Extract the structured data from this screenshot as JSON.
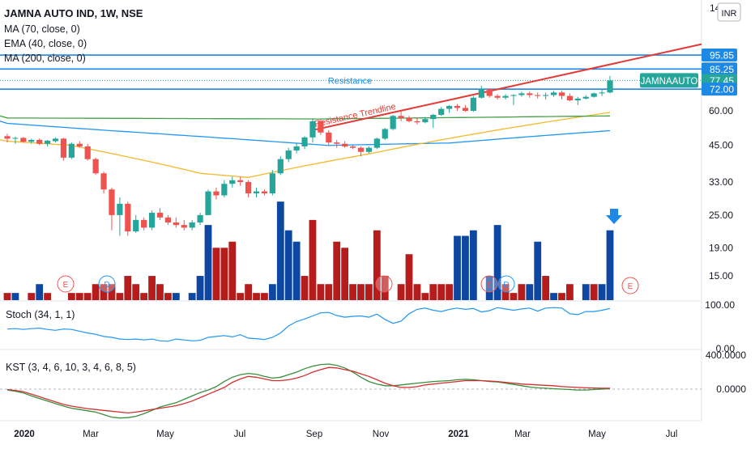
{
  "header": {
    "symbol_line": "JAMNA AUTO IND, 1W, NSE",
    "indicators": [
      "MA (70, close, 0)",
      "EMA (40, close, 0)",
      "MA (200, close, 0)"
    ],
    "currency_button": "INR"
  },
  "colors": {
    "up": "#26a69a",
    "down": "#ef5350",
    "vol_up": "#0d47a1",
    "vol_down": "#b71c1c",
    "ma70": "#2196f3",
    "ema40": "#f5b82e",
    "ma200": "#43a047",
    "hline": "#1e88e5",
    "trendline": "#e53935",
    "kst": "#d32f2f",
    "kst_signal": "#388e3c",
    "stoch": "#2196f3"
  },
  "chart_data": [
    {
      "type": "candlestick",
      "pane": "price",
      "title": "JAMNA AUTO IND, 1W, NSE",
      "y_scale": "log",
      "y_ticks": [
        "60.00",
        "45.00",
        "33.00",
        "25.00",
        "19.00",
        "15.00"
      ],
      "x_ticks": [
        "2020",
        "Mar",
        "May",
        "Jul",
        "Sep",
        "Nov",
        "2021",
        "Mar",
        "May",
        "Jul"
      ],
      "price_labels": [
        {
          "text": "95.85",
          "value": 95.85
        },
        {
          "text": "85.25",
          "value": 85.25
        },
        {
          "text": "77.45",
          "value": 77.45
        },
        {
          "text": "72.00",
          "value": 72.0
        }
      ],
      "symbol_badge": "JAMNAAUTO",
      "annotations": [
        "Resistance",
        "Resistance Trendline"
      ],
      "top_tick_partial": "14",
      "candles": [
        [
          48.5,
          49.5,
          46,
          47.5
        ],
        [
          47.5,
          48.3,
          45.5,
          47.8
        ],
        [
          47.8,
          48.2,
          46,
          46.3
        ],
        [
          46.3,
          47.5,
          45.5,
          47
        ],
        [
          47,
          47.5,
          45,
          45.5
        ],
        [
          45.5,
          47,
          44.5,
          46.7
        ],
        [
          46.5,
          48,
          46,
          47.5
        ],
        [
          47.5,
          47.8,
          39.5,
          40.5
        ],
        [
          40.5,
          46,
          40,
          45.5
        ],
        [
          45.5,
          46.5,
          44,
          44.5
        ],
        [
          44.5,
          45.5,
          39.5,
          40
        ],
        [
          40,
          40.5,
          35,
          35.5
        ],
        [
          35.5,
          36,
          30,
          31
        ],
        [
          31,
          31.5,
          22,
          25
        ],
        [
          25,
          29,
          21,
          27.5
        ],
        [
          27.5,
          28,
          21,
          21.8
        ],
        [
          21.8,
          25,
          21.5,
          24
        ],
        [
          24,
          24.5,
          22,
          22.5
        ],
        [
          22.5,
          26,
          22,
          25.5
        ],
        [
          25.5,
          26.5,
          24,
          24.5
        ],
        [
          24.5,
          25,
          23,
          23.5
        ],
        [
          23.5,
          24.5,
          22.5,
          23
        ],
        [
          23,
          24,
          22,
          22.5
        ],
        [
          22.5,
          24,
          22,
          23.5
        ],
        [
          23.5,
          25.5,
          23,
          25
        ],
        [
          25,
          31,
          25,
          30.5
        ],
        [
          30.5,
          31.5,
          28.5,
          29.5
        ],
        [
          29.5,
          33.5,
          29,
          32.5
        ],
        [
          32.5,
          34.5,
          31.5,
          33.5
        ],
        [
          33.5,
          34.5,
          32,
          33
        ],
        [
          33,
          33.5,
          29,
          30
        ],
        [
          30,
          31.5,
          29,
          30.5
        ],
        [
          30.5,
          31,
          29.5,
          30
        ],
        [
          30,
          36.5,
          29.5,
          35.5
        ],
        [
          35.5,
          41,
          35,
          40
        ],
        [
          40,
          44,
          39,
          43
        ],
        [
          43,
          46,
          42,
          44.5
        ],
        [
          44.5,
          48.5,
          43.5,
          48
        ],
        [
          48,
          56,
          46,
          55
        ],
        [
          55,
          56,
          49,
          50
        ],
        [
          50,
          51,
          45,
          46
        ],
        [
          46,
          47,
          44,
          45.5
        ],
        [
          45.5,
          46.5,
          44,
          44.5
        ],
        [
          44.5,
          45,
          43.5,
          44
        ],
        [
          44,
          44.5,
          41,
          42.5
        ],
        [
          42.5,
          44.5,
          42,
          44
        ],
        [
          44,
          48,
          43.5,
          47.5
        ],
        [
          47.5,
          52,
          47,
          51.5
        ],
        [
          51.5,
          58,
          51,
          57.5
        ],
        [
          57.5,
          60,
          55,
          56.5
        ],
        [
          56.5,
          57.5,
          54.5,
          55
        ],
        [
          55,
          56.5,
          53.5,
          54.5
        ],
        [
          54.5,
          57,
          54,
          56
        ],
        [
          56,
          58.5,
          52,
          58
        ],
        [
          58,
          62,
          57.5,
          61
        ],
        [
          61,
          63,
          59,
          62.5
        ],
        [
          62.5,
          63.5,
          60,
          61.5
        ],
        [
          61.5,
          63,
          59.5,
          60
        ],
        [
          60,
          68,
          59.5,
          67
        ],
        [
          67,
          74,
          66.5,
          72
        ],
        [
          72,
          72.5,
          67,
          68
        ],
        [
          68,
          69,
          66,
          67
        ],
        [
          67,
          69,
          66,
          68
        ],
        [
          68,
          69,
          63,
          68.5
        ],
        [
          68.5,
          70.5,
          67.5,
          69.5
        ],
        [
          69.5,
          70.5,
          67,
          68.5
        ],
        [
          68.5,
          70,
          66.5,
          68
        ],
        [
          68,
          70,
          66,
          68.5
        ],
        [
          68.5,
          71,
          67.5,
          70
        ],
        [
          70,
          71,
          66,
          68
        ],
        [
          68,
          69.5,
          65,
          65.5
        ],
        [
          65.5,
          67.5,
          63,
          66.5
        ],
        [
          66.5,
          68.5,
          66,
          67.5
        ],
        [
          67.5,
          70,
          67,
          69.5
        ],
        [
          69.5,
          72,
          68,
          70
        ],
        [
          70,
          80.5,
          69.5,
          77.45
        ]
      ],
      "volumes": [
        13,
        13,
        12,
        13,
        14,
        13,
        12,
        12,
        13,
        13,
        13,
        14,
        14,
        14,
        13,
        15,
        14,
        13,
        15,
        14,
        13,
        13,
        12,
        13,
        15,
        23,
        19,
        19,
        20,
        13,
        14,
        13,
        13,
        14,
        28,
        22,
        20,
        15,
        24,
        14,
        14,
        20,
        19,
        14,
        14,
        14,
        22,
        15,
        12,
        14,
        18,
        14,
        13,
        14,
        14,
        14,
        21,
        21,
        22,
        12,
        15,
        23,
        14,
        13,
        14,
        14,
        20,
        15,
        13,
        13,
        14,
        12,
        14,
        14,
        14,
        22
      ],
      "volume_up": [
        0,
        1,
        0,
        0,
        1,
        0,
        1,
        0,
        0,
        0,
        0,
        0,
        0,
        0,
        0,
        0,
        0,
        0,
        0,
        0,
        0,
        1,
        0,
        1,
        1,
        1,
        0,
        0,
        0,
        0,
        0,
        0,
        0,
        1,
        1,
        1,
        1,
        0,
        0,
        0,
        0,
        0,
        0,
        0,
        0,
        0,
        0,
        0,
        0,
        0,
        0,
        0,
        0,
        0,
        0,
        0,
        1,
        1,
        1,
        1,
        1,
        1,
        0,
        0,
        0,
        1,
        1,
        0,
        1,
        0,
        0,
        0,
        1,
        0,
        1,
        1
      ]
    },
    {
      "type": "line",
      "pane": "stoch",
      "title": "Stoch (34, 1, 1)",
      "y_ticks": [
        "100.00",
        "0.00"
      ],
      "ylim": [
        0,
        100
      ],
      "series": [
        {
          "name": "Stoch (34, 1, 1)",
          "values": [
            45,
            46,
            44,
            46,
            47,
            44,
            42,
            45,
            44,
            40,
            36,
            33,
            28,
            26,
            22,
            21,
            22,
            20,
            22,
            18,
            17,
            22,
            20,
            18,
            19,
            26,
            28,
            30,
            27,
            32,
            24,
            23,
            21,
            26,
            36,
            52,
            62,
            68,
            75,
            82,
            83,
            76,
            72,
            74,
            75,
            72,
            79,
            67,
            58,
            63,
            80,
            90,
            93,
            88,
            85,
            90,
            93,
            90,
            92,
            84,
            87,
            94,
            91,
            88,
            91,
            93,
            86,
            93,
            94,
            93,
            80,
            78,
            85,
            85,
            88,
            92
          ]
        }
      ]
    },
    {
      "type": "line",
      "pane": "kst",
      "title": "KST (3, 4, 6, 10, 3, 4, 6, 8, 5)",
      "y_ticks": [
        "400.0000",
        "0.0000"
      ],
      "series": [
        {
          "name": "KST",
          "values": [
            -5,
            -15,
            -30,
            -60,
            -90,
            -120,
            -150,
            -180,
            -200,
            -215,
            -230,
            -240,
            -250,
            -260,
            -270,
            -280,
            -270,
            -255,
            -240,
            -225,
            -210,
            -195,
            -170,
            -140,
            -100,
            -60,
            -20,
            20,
            80,
            120,
            150,
            140,
            120,
            100,
            100,
            110,
            130,
            160,
            200,
            230,
            255,
            250,
            230,
            210,
            180,
            150,
            110,
            70,
            40,
            20,
            20,
            30,
            50,
            60,
            70,
            80,
            90,
            100,
            100,
            100,
            95,
            90,
            80,
            70,
            60,
            55,
            50,
            45,
            40,
            30,
            25,
            20,
            15,
            12,
            10,
            10
          ]
        },
        {
          "name": "Signal",
          "values": [
            -10,
            -25,
            -45,
            -80,
            -110,
            -140,
            -170,
            -200,
            -225,
            -240,
            -255,
            -270,
            -300,
            -330,
            -340,
            -335,
            -320,
            -290,
            -250,
            -210,
            -185,
            -160,
            -120,
            -80,
            -40,
            -10,
            30,
            90,
            140,
            170,
            185,
            175,
            150,
            130,
            140,
            170,
            200,
            240,
            270,
            290,
            295,
            280,
            250,
            200,
            140,
            90,
            60,
            40,
            40,
            50,
            60,
            70,
            80,
            90,
            95,
            100,
            110,
            115,
            110,
            100,
            90,
            85,
            70,
            55,
            40,
            25,
            15,
            10,
            5,
            0,
            -5,
            -10,
            -10,
            -5,
            0,
            5
          ]
        }
      ]
    }
  ]
}
